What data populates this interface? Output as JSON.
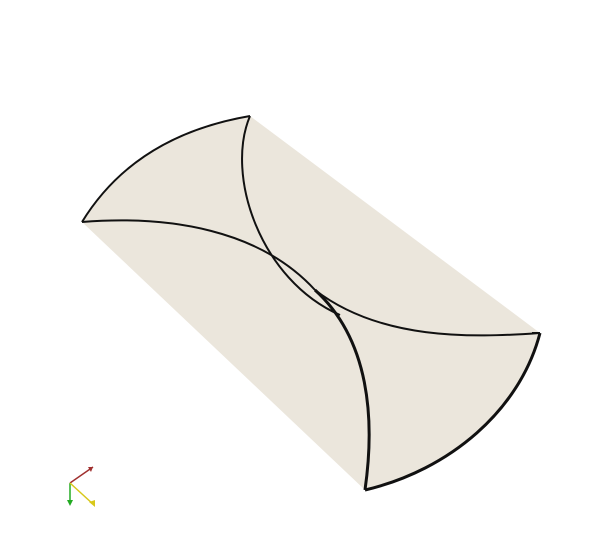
{
  "viewport": {
    "background_color": "#ffffff"
  },
  "model": {
    "surface_color": "#ebe6dc",
    "edge_color": "#111111"
  },
  "orientation_triad": {
    "axis_colors": {
      "x": "#a0302f",
      "y": "#22aa22",
      "z": "#d8c81a"
    }
  }
}
